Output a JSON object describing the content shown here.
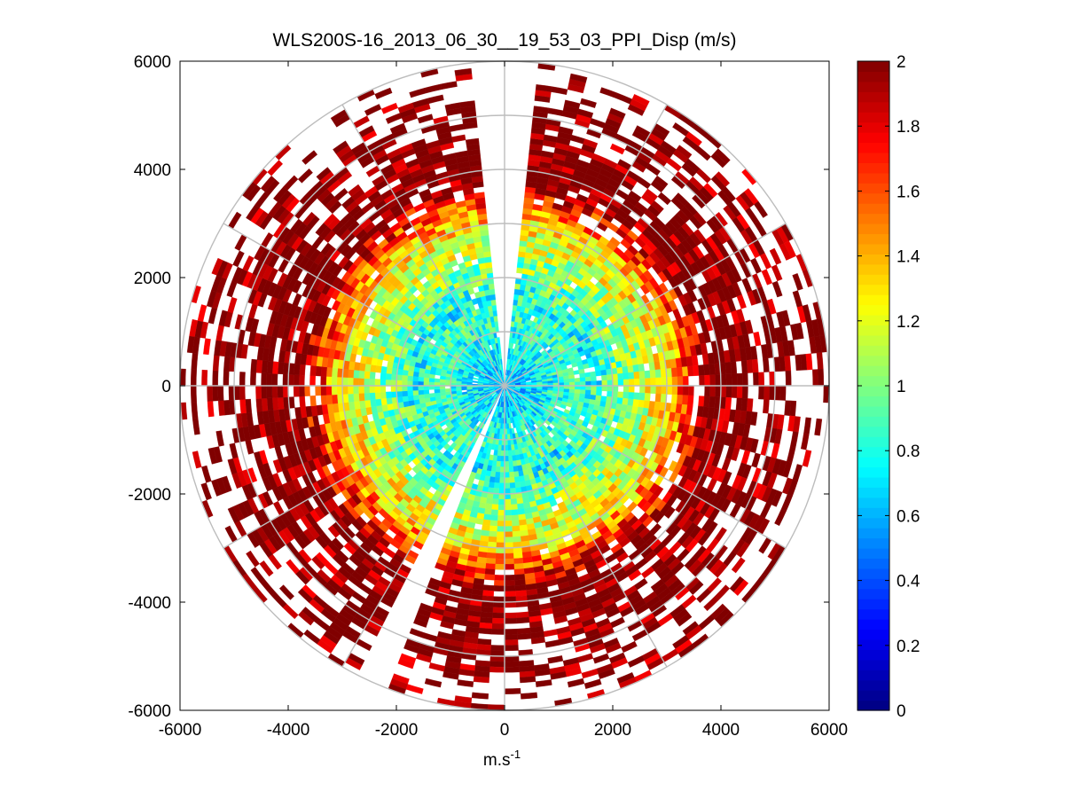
{
  "chart_data": {
    "type": "heatmap",
    "subtype": "polar-ppi",
    "title": "WLS200S-16_2013_06_30__19_53_03_PPI_Disp (m/s)",
    "xlabel": "m.s",
    "xlabel_superscript": "-1",
    "ylabel": "",
    "xlim": [
      -6000,
      6000
    ],
    "ylim": [
      -6000,
      6000
    ],
    "xticks": [
      -6000,
      -4000,
      -2000,
      0,
      2000,
      4000,
      6000
    ],
    "yticks": [
      -6000,
      -4000,
      -2000,
      0,
      2000,
      4000,
      6000
    ],
    "xtick_labels": [
      "-6000",
      "-4000",
      "-2000",
      "0",
      "2000",
      "4000",
      "6000"
    ],
    "ytick_labels": [
      "-6000",
      "-4000",
      "-2000",
      "0",
      "2000",
      "4000",
      "6000"
    ],
    "polar_grid": {
      "range_rings": [
        1000,
        2000,
        3000,
        4000,
        5000,
        6000
      ],
      "spokes_deg": [
        0,
        30,
        60,
        90,
        120,
        150,
        180,
        210,
        240,
        270,
        300,
        330
      ]
    },
    "max_range": 6000,
    "missing_sectors_deg": [
      [
        -5,
        5
      ],
      [
        200,
        208
      ]
    ],
    "description_of_field": "dispersion increases with range: ~0.6-0.9 m/s near center, 1.0-1.6 m/s at mid range, saturating at 2 m/s beyond ~3500 m",
    "colorbar": {
      "colormap": "jet",
      "clim": [
        0,
        2
      ],
      "ticks": [
        0,
        0.2,
        0.4,
        0.6,
        0.8,
        1,
        1.2,
        1.4,
        1.6,
        1.8,
        2
      ],
      "tick_labels": [
        "0",
        "0.2",
        "0.4",
        "0.6",
        "0.8",
        "1",
        "1.2",
        "1.4",
        "1.6",
        "1.8",
        "2"
      ]
    },
    "grid": true
  }
}
